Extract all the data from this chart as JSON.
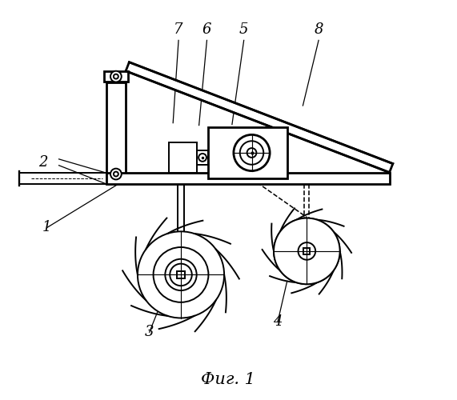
{
  "bg_color": "#ffffff",
  "line_color": "#000000",
  "fig_label": "Фиг. 1",
  "fig_label_fontsize": 15,
  "label_fontsize": 13
}
